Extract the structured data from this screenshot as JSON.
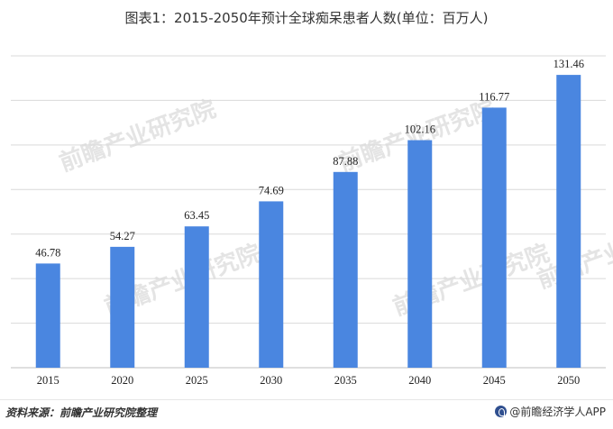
{
  "title": "图表1：2015-2050年预计全球痴呆患者人数(单位：百万人)",
  "watermark": "前瞻产业研究院",
  "footer": {
    "source": "资料来源：前瞻产业研究院整理",
    "brand": "@前瞻经济学人APP"
  },
  "colors": {
    "bar": "#4a86e0",
    "grid": "#d9d9d9"
  },
  "chart_data": {
    "type": "bar",
    "title": "图表1：2015-2050年预计全球痴呆患者人数(单位：百万人)",
    "categories": [
      "2015",
      "2020",
      "2025",
      "2030",
      "2035",
      "2040",
      "2045",
      "2050"
    ],
    "values": [
      46.78,
      54.27,
      63.45,
      74.69,
      87.88,
      102.16,
      116.77,
      131.46
    ],
    "value_labels": [
      "46.78",
      "54.27",
      "63.45",
      "74.69",
      "87.88",
      "102.16",
      "116.77",
      "131.46"
    ],
    "ylim": [
      0,
      140
    ],
    "grid": true,
    "y_ticks_shown": false
  }
}
